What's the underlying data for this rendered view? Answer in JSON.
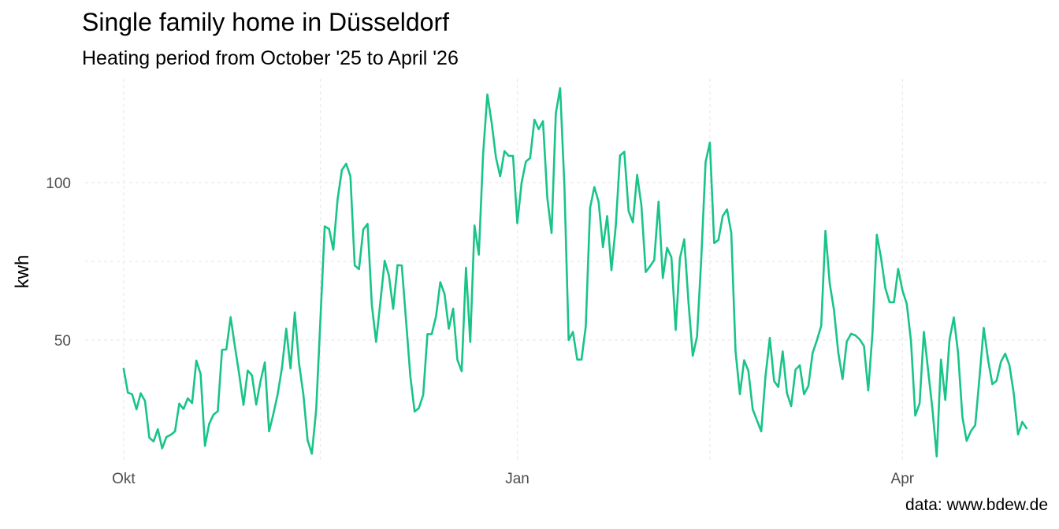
{
  "chart_data": {
    "type": "line",
    "title": "Single family home in Düsseldorf",
    "subtitle": "Heating period from October '25 to April '26",
    "caption": "data: www.bdew.de",
    "ylabel": "kwh",
    "xlabel": "",
    "x_start": "2025-10-01",
    "x_ticks": [
      {
        "date": "2025-10-01",
        "label": "Okt"
      },
      {
        "date": "2026-01-01",
        "label": "Jan"
      },
      {
        "date": "2026-04-01",
        "label": "Apr"
      }
    ],
    "y_ticks": [
      50,
      100
    ],
    "ylim": [
      11,
      133
    ],
    "xlim": [
      "2025-09-22",
      "2026-05-05"
    ],
    "grid": true,
    "line_color": "#19C487",
    "series": [
      {
        "values": [
          40.9,
          33.3,
          32.8,
          28.0,
          33.1,
          30.7,
          19.0,
          17.8,
          21.7,
          15.6,
          19.2,
          19.9,
          21.0,
          29.8,
          28.1,
          31.5,
          30.0,
          43.5,
          39.2,
          16.4,
          23.4,
          26.3,
          27.4,
          46.9,
          47.0,
          57.3,
          48.0,
          39.3,
          29.4,
          40.3,
          38.8,
          29.5,
          37.0,
          42.9,
          21.0,
          26.6,
          32.8,
          41.1,
          53.6,
          41.0,
          58.8,
          42.4,
          32.8,
          18.2,
          13.9,
          28.0,
          56.8,
          86.1,
          85.3,
          78.7,
          94.6,
          104.0,
          106.0,
          102.0,
          73.7,
          72.5,
          85.1,
          86.9,
          61.2,
          49.4,
          62.0,
          75.2,
          70.5,
          59.9,
          73.8,
          73.7,
          56.3,
          38.4,
          27.3,
          28.4,
          32.6,
          51.9,
          51.9,
          57.6,
          68.4,
          64.6,
          53.6,
          60.0,
          43.7,
          40.1,
          73.0,
          49.4,
          86.4,
          77.1,
          109.0,
          128.0,
          119.0,
          108.0,
          102.0,
          110.0,
          108.5,
          108.5,
          87.1,
          100.0,
          106.7,
          107.8,
          120.0,
          117.0,
          119.5,
          95.2,
          84.0,
          122.0,
          130.0,
          99.0,
          50.0,
          52.6,
          43.8,
          43.8,
          54.3,
          92.0,
          98.6,
          93.9,
          79.5,
          89.4,
          72.2,
          86.3,
          108.6,
          109.8,
          90.9,
          87.4,
          102.5,
          92.8,
          71.6,
          73.4,
          75.4,
          94.0,
          69.7,
          79.3,
          76.3,
          53.2,
          76.0,
          82.0,
          61.9,
          45.0,
          51.1,
          76.4,
          106.6,
          112.7,
          80.8,
          81.8,
          89.4,
          91.5,
          84.0,
          46.4,
          32.8,
          43.6,
          40.2,
          28.0,
          24.5,
          21.0,
          38.5,
          50.7,
          37.0,
          35.1,
          46.4,
          33.2,
          29.0,
          40.6,
          42.0,
          32.8,
          35.4,
          45.9,
          49.9,
          54.5,
          84.7,
          68.0,
          59.6,
          46.0,
          37.6,
          49.6,
          52.0,
          51.5,
          50.2,
          48.1,
          34.0,
          52.3,
          83.5,
          76.0,
          66.5,
          62.0,
          62.0,
          72.6,
          65.8,
          61.5,
          49.5,
          26.0,
          29.9,
          52.6,
          40.4,
          28.0,
          13.0,
          43.8,
          31.0,
          50.2,
          57.2,
          46.0,
          25.6,
          18.0,
          21.1,
          23.0,
          38.1,
          53.9,
          43.7,
          36.0,
          37.1,
          43.1,
          45.7,
          42.0,
          33.0,
          20.0,
          24.0,
          22.0
        ]
      }
    ]
  }
}
